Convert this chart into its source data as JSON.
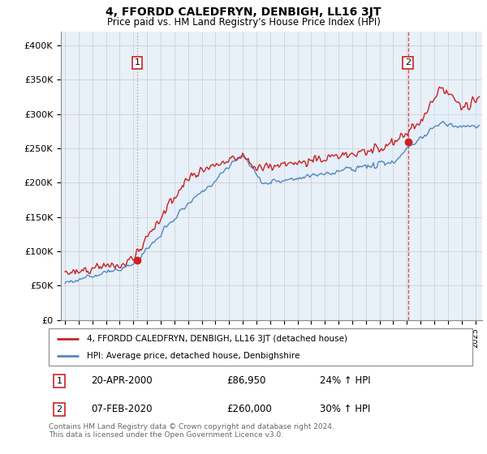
{
  "title": "4, FFORDD CALEDFRYN, DENBIGH, LL16 3JT",
  "subtitle": "Price paid vs. HM Land Registry's House Price Index (HPI)",
  "ylim": [
    0,
    420000
  ],
  "yticks": [
    0,
    50000,
    100000,
    150000,
    200000,
    250000,
    300000,
    350000,
    400000
  ],
  "ytick_labels": [
    "£0",
    "£50K",
    "£100K",
    "£150K",
    "£200K",
    "£250K",
    "£300K",
    "£350K",
    "£400K"
  ],
  "xlim_start": 1994.7,
  "xlim_end": 2025.5,
  "sale1_date": 2000.28,
  "sale1_price": 86950,
  "sale2_date": 2020.08,
  "sale2_price": 260000,
  "legend_entry1": "4, FFORDD CALEDFRYN, DENBIGH, LL16 3JT (detached house)",
  "legend_entry2": "HPI: Average price, detached house, Denbighshire",
  "footer": "Contains HM Land Registry data © Crown copyright and database right 2024.\nThis data is licensed under the Open Government Licence v3.0.",
  "red_color": "#cc2222",
  "blue_color": "#5588bb",
  "fill_color": "#ddeeff",
  "vline1_color": "#aaaaaa",
  "vline2_color": "#cc2222",
  "grid_color": "#cccccc",
  "bg_color": "#e8f0f8"
}
